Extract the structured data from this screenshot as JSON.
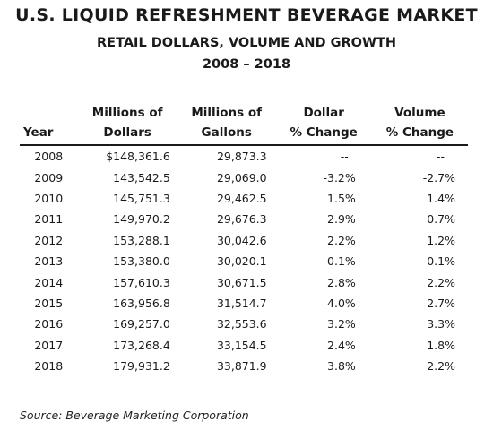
{
  "title": "U.S. LIQUID REFRESHMENT BEVERAGE MARKET",
  "subtitle": "RETAIL DOLLARS, VOLUME AND GROWTH",
  "years_range": "2008 – 2018",
  "headers": {
    "year": [
      "",
      "Year"
    ],
    "dollars": [
      "Millions of",
      "Dollars"
    ],
    "gallons": [
      "Millions of",
      "Gallons"
    ],
    "dollar_pct": [
      "Dollar",
      "% Change"
    ],
    "volume_pct": [
      "Volume",
      "% Change"
    ]
  },
  "rows": [
    {
      "year": "2008",
      "dollars": "$148,361.6",
      "gallons": "29,873.3",
      "dollar_pct": "--",
      "volume_pct": "--"
    },
    {
      "year": "2009",
      "dollars": "143,542.5",
      "gallons": "29,069.0",
      "dollar_pct": "-3.2%",
      "volume_pct": "-2.7%"
    },
    {
      "year": "2010",
      "dollars": "145,751.3",
      "gallons": "29,462.5",
      "dollar_pct": "1.5%",
      "volume_pct": "1.4%"
    },
    {
      "year": "2011",
      "dollars": "149,970.2",
      "gallons": "29,676.3",
      "dollar_pct": "2.9%",
      "volume_pct": "0.7%"
    },
    {
      "year": "2012",
      "dollars": "153,288.1",
      "gallons": "30,042.6",
      "dollar_pct": "2.2%",
      "volume_pct": "1.2%"
    },
    {
      "year": "2013",
      "dollars": "153,380.0",
      "gallons": "30,020.1",
      "dollar_pct": "0.1%",
      "volume_pct": "-0.1%"
    },
    {
      "year": "2014",
      "dollars": "157,610.3",
      "gallons": "30,671.5",
      "dollar_pct": "2.8%",
      "volume_pct": "2.2%"
    },
    {
      "year": "2015",
      "dollars": "163,956.8",
      "gallons": "31,514.7",
      "dollar_pct": "4.0%",
      "volume_pct": "2.7%"
    },
    {
      "year": "2016",
      "dollars": "169,257.0",
      "gallons": "32,553.6",
      "dollar_pct": "3.2%",
      "volume_pct": "3.3%"
    },
    {
      "year": "2017",
      "dollars": "173,268.4",
      "gallons": "33,154.5",
      "dollar_pct": "2.4%",
      "volume_pct": "1.8%"
    },
    {
      "year": "2018",
      "dollars": "179,931.2",
      "gallons": "33,871.9",
      "dollar_pct": "3.8%",
      "volume_pct": "2.2%"
    }
  ],
  "source": "Source:  Beverage Marketing Corporation"
}
